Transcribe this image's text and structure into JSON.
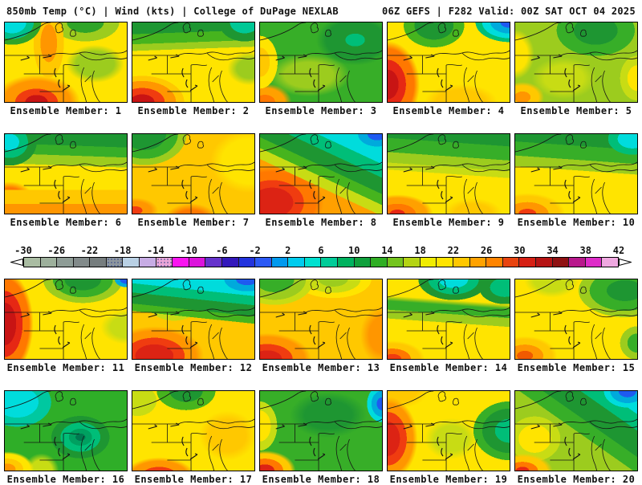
{
  "header": {
    "left": "850mb Temp (°C) | Wind (kts) | College of DuPage NEXLAB",
    "right": "06Z GEFS | F282 Valid: 00Z SAT OCT 04 2025"
  },
  "colorbar": {
    "unit": "°C",
    "ticks": [
      "-30",
      "-26",
      "-22",
      "-18",
      "-14",
      "-10",
      "-6",
      "-2",
      "2",
      "6",
      "10",
      "14",
      "18",
      "22",
      "26",
      "30",
      "34",
      "38",
      "42"
    ],
    "range": [
      -30,
      42
    ],
    "step_per_segment": 2,
    "segments": [
      "#A9BCA2",
      "#9DB09C",
      "#8E9C96",
      "#828A8A",
      "#767D7E",
      "#8E979E",
      "#B9D0E4",
      "#C7ACE4",
      "#ECA6D8",
      "#FA14F0",
      "#DC14DC",
      "#6633CC",
      "#3318BB",
      "#2233DD",
      "#2B59F5",
      "#0099EE",
      "#00CCEE",
      "#00E0D0",
      "#00CC99",
      "#00B25E",
      "#0FA03C",
      "#2FAE24",
      "#74C41E",
      "#B4D414",
      "#F0EC00",
      "#FFE400",
      "#FFC800",
      "#FFA200",
      "#FF8400",
      "#E84410",
      "#D62014",
      "#B61414",
      "#8F1112",
      "#B8188C",
      "#DE2CC8",
      "#EFA8E0"
    ],
    "stipple_segments": [
      5,
      8
    ],
    "arrow_fill": "#ffffff",
    "arrow_stroke": "#000000"
  },
  "map_style": {
    "line_color": "#141414",
    "border_color": "#000000"
  },
  "panels": [
    {
      "label": "Ensemble Member: 1",
      "bg": "radial-gradient(ellipse 34% 40% at 6% 0%, #00DCDC 0 34%, #00C08C 34% 52%, #2FA428 52% 70%, rgba(0,0,0,0) 70%), radial-gradient(ellipse 20% 70% at 36% 26%, #FF9600 0 34%, #FFC800 34% 62%, rgba(0,0,0,0) 62%), radial-gradient(ellipse 46% 44% at 26% 100%, #C81414 0 20%, #F03C10 20% 38%, #FF9600 38% 60%, rgba(0,0,0,0) 78%), radial-gradient(ellipse 34% 34% at 74% 52%, #9CCC1E 0 46%, rgba(0,0,0,0) 70%), radial-gradient(ellipse 42% 36% at 66% 0%, #2FA428 0 36%, #9CCC1E 36% 66%, rgba(0,0,0,0) 66%), linear-gradient(#FFE400,#FFE400)"
    },
    {
      "label": "Ensemble Member: 2",
      "bg": "radial-gradient(ellipse 30% 34% at 92% 0%, #00C896 0 40%, #1E9632 40% 70%, rgba(0,0,0,0) 70%), linear-gradient(178deg, #1E9632 0 14%, #46B41E 14% 26%, #9CCC1E 26% 34%, rgba(0,0,0,0) 34%), radial-gradient(ellipse 42% 40% at 8% 100%, #C81414 0 24%, #F03C10 24% 44%, #FF9600 44% 66%, #FFC800 66% 82%, rgba(0,0,0,0) 82%), radial-gradient(ellipse 26% 30% at 96% 58%, #9CCC1E 0 40%, rgba(0,0,0,0) 70%), linear-gradient(#FFE400,#FFE400)"
    },
    {
      "label": "Ensemble Member: 3",
      "bg": "radial-gradient(ellipse 40% 40% at 78% 22%, #00BE78 0 20%, #1E9632 20% 60%, rgba(0,0,0,0) 80%), radial-gradient(ellipse 20% 46% at 0% 50%, #FFC800 0 40%, #FFE400 40% 72%, rgba(0,0,0,0) 72%), radial-gradient(ellipse 28% 30% at 4% 100%, #FF7800 0 30%, #FFA000 30% 58%, rgba(0,0,0,0) 78%), radial-gradient(ellipse 50% 40% at 40% 66%, #9CCC1E 0 40%, rgba(0,0,0,0) 68%), linear-gradient(#37AE28,#37AE28)"
    },
    {
      "label": "Ensemble Member: 4",
      "bg": "radial-gradient(ellipse 34% 30% at 100% 0%, #1E5AF0 0 22%, #00AADC 22% 46%, #00DCDC 46% 66%, #00BE78 66% 82%, rgba(0,0,0,0) 82%), radial-gradient(ellipse 40% 44% at 38% 4%, #1E9632 0 40%, #46B41E 40% 62%, rgba(0,0,0,0) 62%), radial-gradient(ellipse 30% 62% at 0% 78%, #C81414 0 30%, #E62814 30% 50%, #FF7800 50% 72%, rgba(0,0,0,0) 88%), radial-gradient(ellipse 40% 30% at 60% 100%, #FFC800 0 50%, rgba(0,0,0,0) 75%), linear-gradient(#FFE400,#FFE400)"
    },
    {
      "label": "Ensemble Member: 5",
      "bg": "radial-gradient(ellipse 50% 50% at 66% 10%, #1E9632 0 36%, #37AE28 36% 64%, rgba(0,0,0,0) 64%), radial-gradient(ellipse 20% 40% at 0% 40%, #FFE400 0 50%, rgba(0,0,0,0) 78%), radial-gradient(ellipse 22% 24% at 6% 94%, #FF9600 0 30%, #FFC800 30% 60%, rgba(0,0,0,0) 80%), radial-gradient(ellipse 20% 40% at 100% 70%, #FFE400 0 40%, #C8DC14 40% 70%, rgba(0,0,0,0) 70%), radial-gradient(ellipse 40% 40% at 40% 70%, #C8DC14 0 40%, rgba(0,0,0,0) 66%), linear-gradient(#9CCC1E,#9CCC1E)"
    },
    {
      "label": "Ensemble Member: 6",
      "bg": "radial-gradient(ellipse 30% 40% at 4% 10%, #00DCDC 0 26%, #00BE78 26% 50%, #1E9632 50% 74%, rgba(0,0,0,0) 74%), linear-gradient(182deg, #1E9632 0 16%, #37AE28 16% 28%, #9CCC1E 28% 40%, rgba(0,0,0,0) 40%), linear-gradient(0deg, #FF9600 0 12%, #FFC800 12% 30%, rgba(0,0,0,0) 30%), radial-gradient(ellipse 26% 26% at 4% 78%, #FF7800 0 40%, rgba(0,0,0,0) 70%), linear-gradient(#FFE400,#FFE400)"
    },
    {
      "label": "Ensemble Member: 7",
      "bg": "radial-gradient(ellipse 44% 50% at 10% 0%, #1E9632 0 40%, #37AE28 40% 62%, #9CCC1E 62% 78%, rgba(0,0,0,0) 78%), radial-gradient(ellipse 30% 30% at 48% 110%, #F03C10 0 18%, #FF7800 18% 48%, rgba(0,0,0,0) 76%), radial-gradient(ellipse 24% 20% at 2% 96%, #F03C10 0 26%, #FF9600 26% 56%, rgba(0,0,0,0) 80%), radial-gradient(ellipse 40% 50% at 96% 34%, #FFE400 0 56%, rgba(0,0,0,0) 80%), linear-gradient(#FFC800,#FFC800)"
    },
    {
      "label": "Ensemble Member: 8",
      "bg": "radial-gradient(ellipse 26% 26% at 96% 0%, #1E5AF0 0 30%, #00AADC 30% 60%, rgba(0,0,0,0) 60%), linear-gradient(205deg, #00DCDC 10% 22%, #00BE78 22% 32%, #1E9632 32% 44%, #46B41E 44% 52%, #C8DC14 52% 60%, rgba(0,0,0,0) 60%), radial-gradient(ellipse 48% 52% at 10% 86%, #DC2314 0 36%, #F03C10 36% 54%, #FF7800 54% 74%, rgba(0,0,0,0) 88%), linear-gradient(#FFA000,#FFA000)"
    },
    {
      "label": "Ensemble Member: 9",
      "bg": "linear-gradient(184deg, #1E9632 0 14%, #37AE28 14% 30%, #9CCC1E 30% 42%, #C8DC14 42% 50%, rgba(0,0,0,0) 50%), radial-gradient(ellipse 34% 28% at 8% 100%, #E62814 0 18%, #FF7800 18% 44%, #FFA000 44% 70%, rgba(0,0,0,0) 86%), radial-gradient(ellipse 30% 24% at 70% 100%, #FFC800 0 50%, rgba(0,0,0,0) 80%), linear-gradient(#FFE400,#FFE400)"
    },
    {
      "label": "Ensemble Member: 10",
      "bg": "radial-gradient(ellipse 30% 30% at 96% 6%, #00DCDC 0 40%, #00BE78 40% 66%, rgba(0,0,0,0) 66%), linear-gradient(184deg, #1E9632 0 18%, #37AE28 18% 34%, #9CCC1E 34% 46%, rgba(0,0,0,0) 46%), radial-gradient(ellipse 36% 30% at 10% 100%, #F03C10 0 20%, #FF9600 20% 48%, #FFC800 48% 72%, rgba(0,0,0,0) 86%), linear-gradient(#FFE400,#FFE400)"
    },
    {
      "label": "Ensemble Member: 11",
      "bg": "radial-gradient(ellipse 14% 14% at 100% 0%, #1E5AF0 0 40%, #00AADC 40% 70%, rgba(0,0,0,0) 70%), radial-gradient(ellipse 44% 40% at 64% 0%, #1E9632 0 34%, #37AE28 34% 56%, #9CCC1E 56% 74%, rgba(0,0,0,0) 74%), radial-gradient(ellipse 26% 74% at 0% 56%, #C81414 0 36%, #E62814 36% 56%, #FF7800 56% 76%, rgba(0,0,0,0) 90%), radial-gradient(ellipse 30% 30% at 100% 60%, #C8DC14 0 44%, rgba(0,0,0,0) 72%), linear-gradient(#FFE400,#FFE400)"
    },
    {
      "label": "Ensemble Member: 12",
      "bg": "radial-gradient(ellipse 30% 24% at 94% 0%, #1E5AF0 0 30%, #00AADC 30% 62%, rgba(0,0,0,0) 62%), linear-gradient(186deg, #00DCDC 0 18%, #00BE78 18% 28%, #1E9632 28% 40%, #46B41E 40% 48%, rgba(0,0,0,0) 48%), radial-gradient(ellipse 30% 28% at 34% 34%, #FFE400 0 40%, #C8DC14 40% 64%, rgba(0,0,0,0) 64%), radial-gradient(ellipse 46% 42% at 18% 96%, #DC2314 0 34%, #F03C10 34% 54%, #FF9600 54% 74%, rgba(0,0,0,0) 88%), linear-gradient(#FFC800,#FFC800)"
    },
    {
      "label": "Ensemble Member: 13",
      "bg": "radial-gradient(ellipse 40% 40% at 12% 0%, #37AE28 0 40%, #9CCC1E 40% 64%, #C8DC14 64% 80%, rgba(0,0,0,0) 80%), radial-gradient(ellipse 40% 30% at 60% 0%, #9CCC1E 0 30%, #C8DC14 30% 56%, #FFE400 56% 78%, rgba(0,0,0,0) 78%), radial-gradient(ellipse 40% 36% at 6% 100%, #DC2314 0 30%, #F03C10 30% 52%, #FF9600 52% 76%, rgba(0,0,0,0) 90%), radial-gradient(ellipse 24% 50% at 100% 70%, #FF9600 0 44%, rgba(0,0,0,0) 74%), linear-gradient(#FFC800,#FFC800)"
    },
    {
      "label": "Ensemble Member: 14",
      "bg": "radial-gradient(ellipse 40% 36% at 54% 0%, #00DCDC 0 30%, #00BE78 30% 52%, #1E9632 52% 72%, rgba(0,0,0,0) 72%), radial-gradient(ellipse 30% 30% at 96% 10%, #00BE78 0 40%, #1E9632 40% 70%, rgba(0,0,0,0) 70%), linear-gradient(184deg, rgba(0,0,0,0) 0 28%, #37AE28 34% 44%, #9CCC1E 44% 54%, rgba(0,0,0,0) 54%), radial-gradient(ellipse 30% 26% at 4% 100%, #F03C10 0 24%, #FF7800 24% 50%, #FFC800 50% 74%, rgba(0,0,0,0) 88%), linear-gradient(#FFE400,#FFE400)"
    },
    {
      "label": "Ensemble Member: 15",
      "bg": "radial-gradient(ellipse 50% 44% at 90% 14%, #1E9632 0 30%, #37AE28 30% 58%, #9CCC1E 58% 76%, rgba(0,0,0,0) 76%), radial-gradient(ellipse 30% 30% at 30% 0%, #C8DC14 0 50%, rgba(0,0,0,0) 76%), radial-gradient(ellipse 30% 28% at 8% 96%, #F05A00 0 22%, #FF9600 22% 50%, #FFC800 50% 74%, rgba(0,0,0,0) 88%), radial-gradient(ellipse 20% 30% at 100% 80%, #37AE28 0 40%, #9CCC1E 40% 70%, rgba(0,0,0,0) 70%), linear-gradient(#FFE400,#FFE400)"
    },
    {
      "label": "Ensemble Member: 16",
      "bg": "radial-gradient(ellipse 40% 44% at 10% 14%, #00DCDC 0 44%, #00C8A0 44% 70%, rgba(0,0,0,0) 70%), radial-gradient(ellipse 34% 38% at 62% 58%, #007850 0 12%, #00A060 12% 28%, #00BE78 28% 48%, #1E9632 48% 70%, rgba(0,0,0,0) 70%), radial-gradient(ellipse 26% 26% at 2% 98%, #FF9600 0 26%, #FFC800 26% 50%, #FFE400 50% 72%, rgba(0,0,0,0) 84%), radial-gradient(ellipse 20% 30% at 30% 100%, #C8DC14 0 44%, rgba(0,0,0,0) 72%), linear-gradient(#2FAE28,#2FAE28)"
    },
    {
      "label": "Ensemble Member: 17",
      "bg": "radial-gradient(ellipse 40% 40% at 44% 0%, #1E9632 0 34%, #46B41E 34% 60%, rgba(0,0,0,0) 60%), radial-gradient(ellipse 36% 44% at 4% 12%, #C8DC14 0 44%, #FFE400 44% 72%, rgba(0,0,0,0) 72%), radial-gradient(ellipse 36% 30% at 22% 108%, #DC2314 0 22%, #F03C10 22% 42%, #FF9600 42% 66%, rgba(0,0,0,0) 82%), radial-gradient(ellipse 30% 40% at 78% 56%, #FFC800 0 50%, rgba(0,0,0,0) 78%), linear-gradient(#FFE400,#FFE400)"
    },
    {
      "label": "Ensemble Member: 18",
      "bg": "radial-gradient(ellipse 18% 34% at 100% 16%, #1E5AF0 0 24%, #00AADC 24% 48%, #00DCDC 48% 68%, rgba(0,0,0,0) 68%), radial-gradient(ellipse 20% 44% at 0% 44%, #FFE400 0 44%, #C8DC14 44% 70%, rgba(0,0,0,0) 70%), radial-gradient(ellipse 30% 30% at 4% 100%, #DC2314 0 26%, #FF7800 26% 50%, #FFC800 50% 70%, rgba(0,0,0,0) 84%), radial-gradient(ellipse 44% 40% at 56% 30%, #1E9632 0 44%, rgba(0,0,0,0) 72%), linear-gradient(#37AE28,#37AE28)"
    },
    {
      "label": "Ensemble Member: 19",
      "bg": "radial-gradient(ellipse 28% 60% at 0% 60%, #DC2314 0 36%, #F03C10 36% 56%, #FF9600 56% 74%, rgba(0,0,0,0) 88%), radial-gradient(ellipse 30% 30% at 12% 0%, #FFC800 0 40%, rgba(0,0,0,0) 70%), radial-gradient(ellipse 40% 50% at 100% 50%, #00BE78 0 30%, #1E9632 30% 56%, #37AE28 56% 74%, rgba(0,0,0,0) 74%), radial-gradient(ellipse 30% 36% at 52% 60%, #C8DC14 0 44%, rgba(0,0,0,0) 72%), linear-gradient(#FFE400,#FFE400)"
    },
    {
      "label": "Ensemble Member: 20",
      "bg": "radial-gradient(ellipse 26% 28% at 92% 0%, #1E5AF0 0 28%, #00AADC 28% 54%, #00DCDC 54% 74%, rgba(0,0,0,0) 74%), linear-gradient(215deg, #00DCDC 4% 14%, #00BE78 14% 24%, #1E9632 24% 40%, #37AE28 40% 50%, rgba(0,0,0,0) 50%), radial-gradient(ellipse 30% 26% at 6% 100%, #E62814 0 18%, #FF7800 18% 42%, #FFC800 42% 66%, rgba(0,0,0,0) 82%), radial-gradient(ellipse 30% 40% at 16% 60%, #FFE400 0 44%, #C8DC14 44% 70%, rgba(0,0,0,0) 70%), linear-gradient(#9CCC1E,#9CCC1E)"
    }
  ]
}
